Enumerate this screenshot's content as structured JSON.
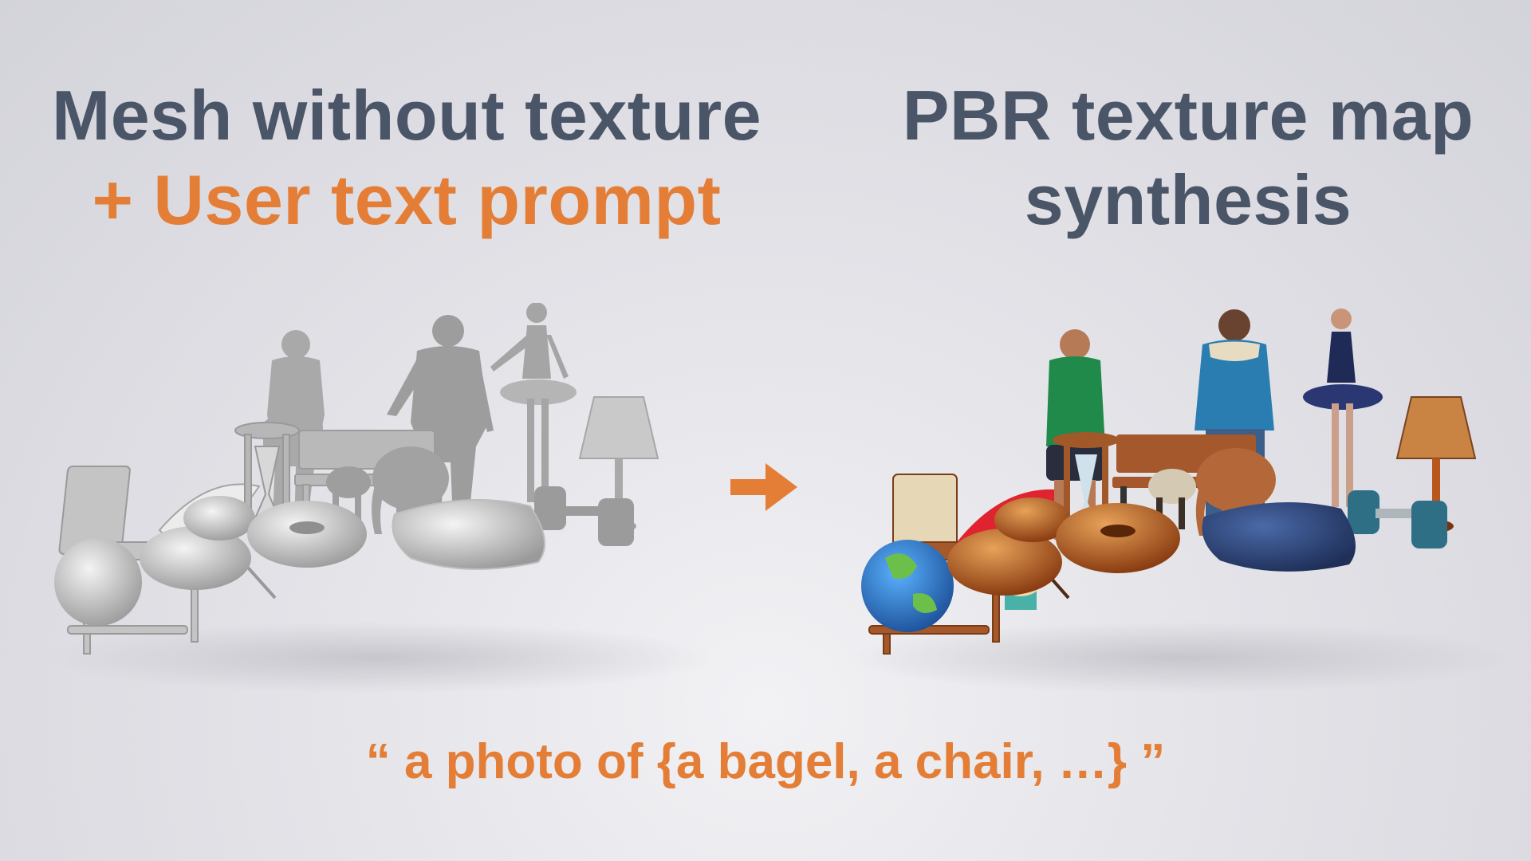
{
  "left_heading": {
    "line1": "Mesh without texture",
    "line2": "+ User text prompt"
  },
  "right_heading": {
    "line1": "PBR texture map",
    "line2": "synthesis"
  },
  "caption": "“ a photo of {a bagel, a chair, …} ”",
  "arrow_icon": "right-arrow-icon",
  "colors": {
    "heading_dark": "#4a5568",
    "accent_orange": "#e47e37",
    "background": "#e4e4e9"
  },
  "left_scene_objects": [
    "chair",
    "ball",
    "umbrella",
    "person-man-1",
    "person-man-2",
    "ballerina",
    "side-table",
    "bench",
    "sheep",
    "elephant",
    "lamp",
    "dumbbell",
    "bread",
    "bagel",
    "pillow"
  ],
  "right_scene_objects": [
    "chair",
    "globe",
    "umbrella",
    "cupcake",
    "person-man-1",
    "person-man-2",
    "ballerina",
    "side-table",
    "bench",
    "sheep",
    "elephant",
    "lamp",
    "dumbbell",
    "bread",
    "bagel",
    "pillow"
  ]
}
